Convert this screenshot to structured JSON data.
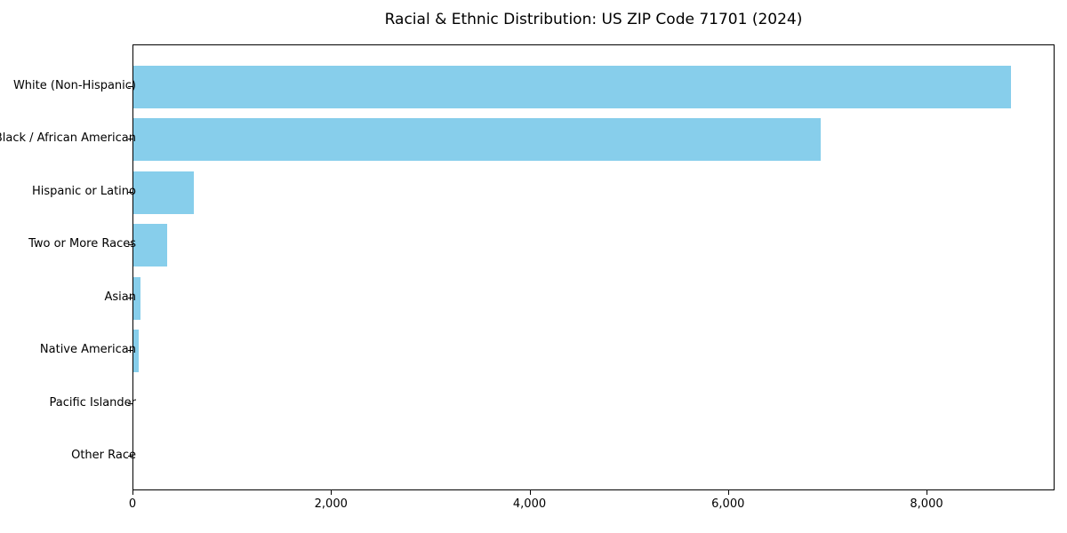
{
  "chart_data": {
    "type": "bar",
    "orientation": "horizontal",
    "title": "Racial & Ethnic Distribution: US ZIP Code 71701 (2024)",
    "categories": [
      "White (Non-Hispanic)",
      "Black / African American",
      "Hispanic or Latino",
      "Two or More Races",
      "Asian",
      "Native American",
      "Pacific Islander",
      "Other Race"
    ],
    "values": [
      8840,
      6925,
      610,
      340,
      75,
      55,
      0,
      0
    ],
    "xlabel": "",
    "ylabel": "",
    "xlim": [
      0,
      9290
    ],
    "x_ticks": [
      0,
      2000,
      4000,
      6000,
      8000
    ],
    "x_tick_labels": [
      "0",
      "2,000",
      "4,000",
      "6,000",
      "8,000"
    ],
    "grid": false,
    "legend": null,
    "bar_color": "#87CEEB",
    "axis_color": "#000000",
    "text_color": "#000000",
    "background_color": "#ffffff"
  },
  "layout_note": "single horizontal bar chart, categories listed top to bottom in descending value order"
}
